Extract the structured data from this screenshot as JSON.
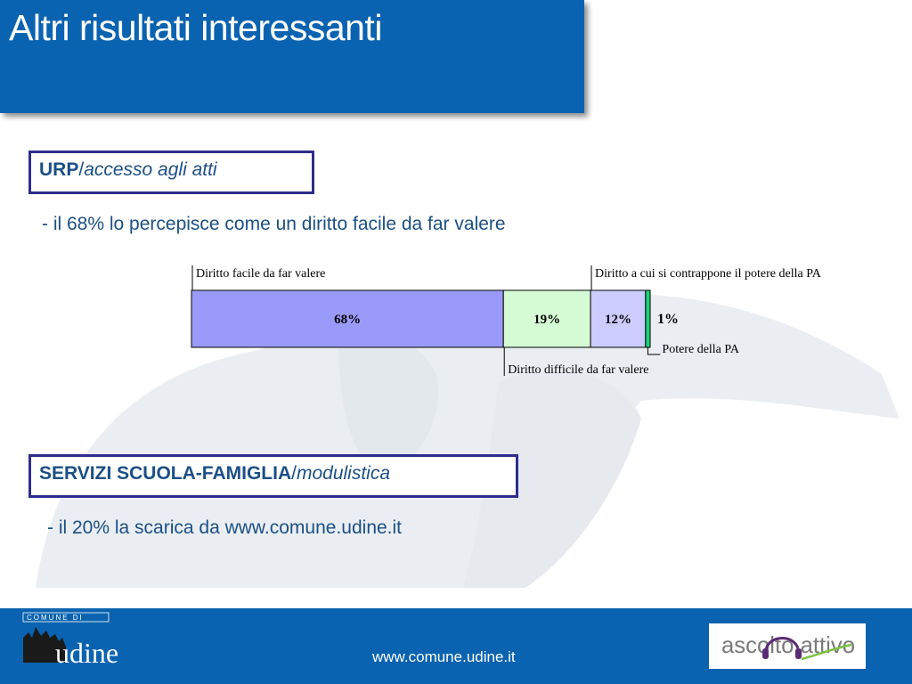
{
  "slide": {
    "title": "Altri risultati interessanti"
  },
  "sections": [
    {
      "heading_bold": "URP",
      "heading_sep": "/",
      "heading_italic": "accesso agli atti",
      "bullet": "- il 68% lo percepisce come un diritto facile da far valere"
    },
    {
      "heading_bold": "SERVIZI SCUOLA-FAMIGLIA",
      "heading_sep": "/",
      "heading_italic": "modulistica",
      "bullet": "- il 20% la scarica da www.comune.udine.it"
    }
  ],
  "chart_data": {
    "type": "bar",
    "orientation": "horizontal-stacked-100",
    "categories": [
      "Diritto facile da far valere",
      "Diritto difficile da far valere",
      "Diritto a cui si contrappone il potere della PA",
      "Potere della PA"
    ],
    "values": [
      68,
      19,
      12,
      1
    ],
    "value_labels": [
      "68%",
      "19%",
      "12%",
      "1%"
    ],
    "colors": [
      "#9a9afa",
      "#d4fbd4",
      "#ccccff",
      "#22d27a"
    ],
    "callout_positions": [
      "top",
      "bottom",
      "top",
      "bottom-right"
    ]
  },
  "footer": {
    "url": "www.comune.udine.it",
    "left_logo_text": "COMUNE DI",
    "left_logo_word": "udine",
    "right_logo_text": "ascolto attivo"
  },
  "colors": {
    "primary_blue": "#0a63b0",
    "box_border": "#2d2d8c",
    "body_text": "#1b4f86"
  }
}
